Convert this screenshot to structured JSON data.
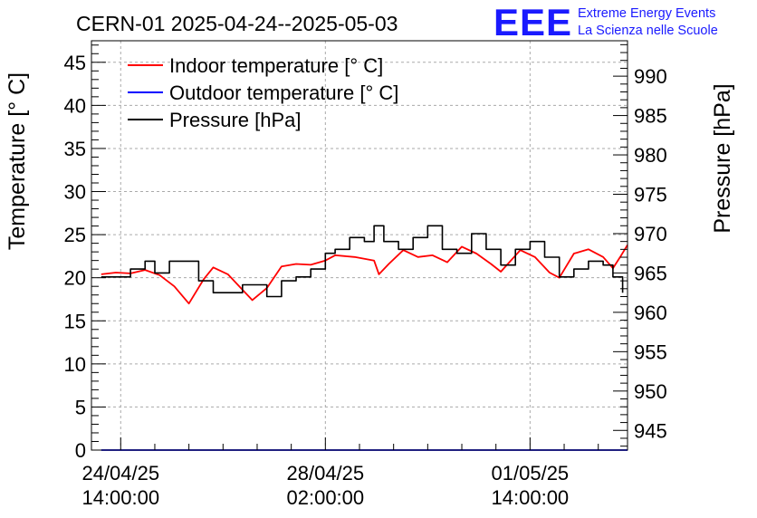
{
  "header": {
    "title": "CERN-01 2025-04-24--2025-05-03",
    "logo_text": "EEE",
    "logo_line1": "Extreme Energy Events",
    "logo_line2": "La Scienza nelle Scuole",
    "logo_color": "#1a1aff"
  },
  "chart_data": {
    "type": "line",
    "title": "CERN-01 2025-04-24--2025-05-03",
    "xlabel": "",
    "ylabel": "Temperature [° C]",
    "y2label": "Pressure [hPa]",
    "x_tick_labels": [
      {
        "date": "24/04/25",
        "time": "14:00:00"
      },
      {
        "date": "28/04/25",
        "time": "02:00:00"
      },
      {
        "date": "01/05/25",
        "time": "14:00:00"
      }
    ],
    "xlim": [
      "2025-04-24 02:00",
      "2025-05-03 06:00"
    ],
    "ylim": [
      0,
      47.5
    ],
    "y_ticks": [
      0,
      5,
      10,
      15,
      20,
      25,
      30,
      35,
      40,
      45
    ],
    "y2lim": [
      942.5,
      994.5
    ],
    "y2_ticks": [
      945,
      950,
      955,
      960,
      965,
      970,
      975,
      980,
      985,
      990
    ],
    "grid": true,
    "legend_position": "top-left",
    "series": [
      {
        "name": "Indoor temperature [° C]",
        "color": "#ff0000",
        "axis": "left",
        "points": [
          [
            "2025-04-24 06:00",
            20.4
          ],
          [
            "2025-04-24 12:00",
            20.6
          ],
          [
            "2025-04-24 18:00",
            20.5
          ],
          [
            "2025-04-25 00:00",
            20.9
          ],
          [
            "2025-04-25 06:00",
            20.3
          ],
          [
            "2025-04-25 12:00",
            19.0
          ],
          [
            "2025-04-25 18:00",
            17.0
          ],
          [
            "2025-04-26 00:00",
            19.8
          ],
          [
            "2025-04-26 04:00",
            21.2
          ],
          [
            "2025-04-26 10:00",
            20.4
          ],
          [
            "2025-04-26 16:00",
            18.6
          ],
          [
            "2025-04-26 20:00",
            17.4
          ],
          [
            "2025-04-27 02:00",
            18.8
          ],
          [
            "2025-04-27 08:00",
            21.3
          ],
          [
            "2025-04-27 14:00",
            21.6
          ],
          [
            "2025-04-27 20:00",
            21.5
          ],
          [
            "2025-04-28 02:00",
            22.0
          ],
          [
            "2025-04-28 06:00",
            22.6
          ],
          [
            "2025-04-28 14:00",
            22.4
          ],
          [
            "2025-04-28 22:00",
            22.0
          ],
          [
            "2025-04-29 00:00",
            20.4
          ],
          [
            "2025-04-29 04:00",
            21.6
          ],
          [
            "2025-04-29 10:00",
            23.2
          ],
          [
            "2025-04-29 16:00",
            22.4
          ],
          [
            "2025-04-29 22:00",
            22.6
          ],
          [
            "2025-04-30 04:00",
            21.8
          ],
          [
            "2025-04-30 10:00",
            23.6
          ],
          [
            "2025-04-30 16:00",
            22.8
          ],
          [
            "2025-04-30 22:00",
            21.6
          ],
          [
            "2025-05-01 02:00",
            20.7
          ],
          [
            "2025-05-01 10:00",
            23.2
          ],
          [
            "2025-05-01 16:00",
            22.4
          ],
          [
            "2025-05-01 22:00",
            20.6
          ],
          [
            "2025-05-02 02:00",
            20.0
          ],
          [
            "2025-05-02 08:00",
            22.8
          ],
          [
            "2025-05-02 14:00",
            23.3
          ],
          [
            "2025-05-02 20:00",
            22.4
          ],
          [
            "2025-05-03 00:00",
            21.1
          ],
          [
            "2025-05-03 03:00",
            22.4
          ],
          [
            "2025-05-03 06:00",
            23.8
          ]
        ]
      },
      {
        "name": "Outdoor temperature [° C]",
        "color": "#0000ff",
        "axis": "left",
        "points": [
          [
            "2025-04-24 06:00",
            0.0
          ],
          [
            "2025-05-03 06:00",
            0.0
          ]
        ]
      },
      {
        "name": "Pressure [hPa]",
        "color": "#000000",
        "axis": "right",
        "points": [
          [
            "2025-04-24 06:00",
            964.5
          ],
          [
            "2025-04-24 12:00",
            964.5
          ],
          [
            "2025-04-24 18:00",
            965.5
          ],
          [
            "2025-04-25 00:00",
            966.5
          ],
          [
            "2025-04-25 04:00",
            965.0
          ],
          [
            "2025-04-25 10:00",
            966.5
          ],
          [
            "2025-04-25 16:00",
            966.5
          ],
          [
            "2025-04-25 22:00",
            964.0
          ],
          [
            "2025-04-26 04:00",
            962.5
          ],
          [
            "2025-04-26 10:00",
            962.5
          ],
          [
            "2025-04-26 16:00",
            963.5
          ],
          [
            "2025-04-26 22:00",
            963.5
          ],
          [
            "2025-04-27 02:00",
            962.0
          ],
          [
            "2025-04-27 08:00",
            964.0
          ],
          [
            "2025-04-27 14:00",
            964.5
          ],
          [
            "2025-04-27 20:00",
            965.5
          ],
          [
            "2025-04-28 02:00",
            967.5
          ],
          [
            "2025-04-28 06:00",
            968.0
          ],
          [
            "2025-04-28 12:00",
            969.5
          ],
          [
            "2025-04-28 18:00",
            969.0
          ],
          [
            "2025-04-28 22:00",
            971.0
          ],
          [
            "2025-04-29 02:00",
            969.0
          ],
          [
            "2025-04-29 08:00",
            968.0
          ],
          [
            "2025-04-29 14:00",
            969.5
          ],
          [
            "2025-04-29 20:00",
            971.0
          ],
          [
            "2025-04-30 02:00",
            968.0
          ],
          [
            "2025-04-30 08:00",
            967.5
          ],
          [
            "2025-04-30 14:00",
            970.0
          ],
          [
            "2025-04-30 20:00",
            968.0
          ],
          [
            "2025-05-01 02:00",
            966.0
          ],
          [
            "2025-05-01 08:00",
            968.0
          ],
          [
            "2025-05-01 14:00",
            969.0
          ],
          [
            "2025-05-01 20:00",
            967.0
          ],
          [
            "2025-05-02 02:00",
            964.5
          ],
          [
            "2025-05-02 08:00",
            965.5
          ],
          [
            "2025-05-02 14:00",
            966.5
          ],
          [
            "2025-05-02 20:00",
            966.0
          ],
          [
            "2025-05-03 00:00",
            964.5
          ],
          [
            "2025-05-03 04:00",
            962.5
          ]
        ]
      }
    ]
  }
}
